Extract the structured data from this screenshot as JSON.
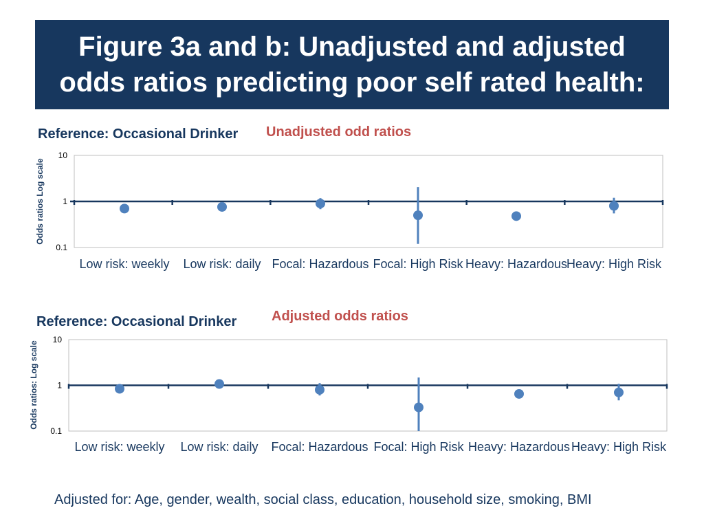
{
  "title": "Figure 3a and b: Unadjusted and adjusted odds ratios predicting poor self rated health:",
  "footnote": "Adjusted for: Age, gender, wealth,  social class, education, household size, smoking, BMI",
  "colors": {
    "title_bg": "#17375e",
    "title_text": "#ffffff",
    "reference_line": "#17375e",
    "marker": "#4f81bd",
    "error_bar": "#4f81bd",
    "chart_title": "#c0504d",
    "tick_label": "#17375e"
  },
  "chart_data": [
    {
      "type": "scatter",
      "reference_label": "Reference: Occasional Drinker",
      "title": "Unadjusted odd ratios",
      "xlabel": "",
      "ylabel": "Odds ratios Log scale",
      "yscale": "log",
      "ylim": [
        0.1,
        10
      ],
      "yticks": [
        "0.1",
        "1",
        "10"
      ],
      "reference_line": 1,
      "grid": true,
      "categories": [
        "Low risk: weekly",
        "Low risk: daily",
        "Focal: Hazardous",
        "Focal: High Risk",
        "Heavy: Hazardous",
        "Heavy: High Risk"
      ],
      "values": [
        0.7,
        0.76,
        0.9,
        0.5,
        0.48,
        0.8
      ],
      "ci_low": [
        0.62,
        0.66,
        0.68,
        0.12,
        0.4,
        0.55
      ],
      "ci_high": [
        0.8,
        0.9,
        1.18,
        2.05,
        0.58,
        1.2
      ]
    },
    {
      "type": "scatter",
      "reference_label": "Reference: Occasional Drinker",
      "title": "Adjusted odds ratios",
      "xlabel": "",
      "ylabel": "Odds ratios: Log scale",
      "yscale": "log",
      "ylim": [
        0.1,
        10
      ],
      "yticks": [
        "0.1",
        "1",
        "10"
      ],
      "reference_line": 1,
      "grid": true,
      "categories": [
        "Low risk: weekly",
        "Low risk: daily",
        "Focal: Hazardous",
        "Focal: High Risk",
        "Heavy: Hazardous",
        "Heavy: High Risk"
      ],
      "values": [
        0.84,
        1.07,
        0.8,
        0.33,
        0.65,
        0.7
      ],
      "ci_low": [
        0.74,
        0.92,
        0.6,
        0.1,
        0.55,
        0.47
      ],
      "ci_high": [
        0.95,
        1.22,
        1.12,
        1.48,
        0.77,
        1.08
      ]
    }
  ]
}
